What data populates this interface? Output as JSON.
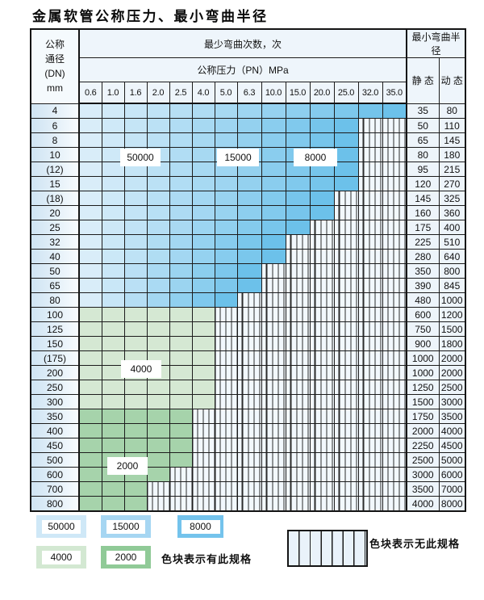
{
  "title": "金属软管公称压力、最小弯曲半径",
  "table": {
    "corner": [
      "公称",
      "通径",
      "(DN)",
      "mm"
    ],
    "bend_header": "最少弯曲次数，次",
    "pressure_header": "公称压力（PN）MPa",
    "radius_header": "最小弯曲半径",
    "static_label": "静 态",
    "dynamic_label": "动 态",
    "pressures": [
      "0.6",
      "1.0",
      "1.6",
      "2.0",
      "2.5",
      "4.0",
      "5.0",
      "6.3",
      "10.0",
      "15.0",
      "20.0",
      "25.0",
      "32.0",
      "35.0"
    ],
    "rows": [
      {
        "dn": "4",
        "colored": 14,
        "zone": "blue",
        "static": "35",
        "dynamic": "80"
      },
      {
        "dn": "6",
        "colored": 12,
        "zone": "blue",
        "static": "50",
        "dynamic": "110"
      },
      {
        "dn": "8",
        "colored": 12,
        "zone": "blue",
        "static": "65",
        "dynamic": "145"
      },
      {
        "dn": "10",
        "colored": 12,
        "zone": "blue",
        "static": "80",
        "dynamic": "180"
      },
      {
        "dn": "(12)",
        "colored": 12,
        "zone": "blue",
        "static": "95",
        "dynamic": "215"
      },
      {
        "dn": "15",
        "colored": 12,
        "zone": "blue",
        "static": "120",
        "dynamic": "270"
      },
      {
        "dn": "(18)",
        "colored": 11,
        "zone": "blue",
        "static": "145",
        "dynamic": "325"
      },
      {
        "dn": "20",
        "colored": 11,
        "zone": "blue",
        "static": "160",
        "dynamic": "360"
      },
      {
        "dn": "25",
        "colored": 10,
        "zone": "blue",
        "static": "175",
        "dynamic": "400"
      },
      {
        "dn": "32",
        "colored": 9,
        "zone": "blue",
        "static": "225",
        "dynamic": "510"
      },
      {
        "dn": "40",
        "colored": 9,
        "zone": "blue",
        "static": "280",
        "dynamic": "640"
      },
      {
        "dn": "50",
        "colored": 8,
        "zone": "blue",
        "static": "350",
        "dynamic": "800"
      },
      {
        "dn": "65",
        "colored": 8,
        "zone": "blue",
        "static": "390",
        "dynamic": "845"
      },
      {
        "dn": "80",
        "colored": 7,
        "zone": "blue",
        "static": "480",
        "dynamic": "1000"
      },
      {
        "dn": "100",
        "colored": 6,
        "zone": "green_light",
        "static": "600",
        "dynamic": "1200"
      },
      {
        "dn": "125",
        "colored": 6,
        "zone": "green_light",
        "static": "750",
        "dynamic": "1500"
      },
      {
        "dn": "150",
        "colored": 6,
        "zone": "green_light",
        "static": "900",
        "dynamic": "1800"
      },
      {
        "dn": "(175)",
        "colored": 6,
        "zone": "green_light",
        "static": "1000",
        "dynamic": "2000"
      },
      {
        "dn": "200",
        "colored": 6,
        "zone": "green_light",
        "static": "1000",
        "dynamic": "2000"
      },
      {
        "dn": "250",
        "colored": 6,
        "zone": "green_light",
        "static": "1250",
        "dynamic": "2500"
      },
      {
        "dn": "300",
        "colored": 6,
        "zone": "green_light",
        "static": "1500",
        "dynamic": "3000"
      },
      {
        "dn": "350",
        "colored": 5,
        "zone": "green_dark",
        "static": "1750",
        "dynamic": "3500"
      },
      {
        "dn": "400",
        "colored": 5,
        "zone": "green_dark",
        "static": "2000",
        "dynamic": "4000"
      },
      {
        "dn": "450",
        "colored": 5,
        "zone": "green_dark",
        "static": "2250",
        "dynamic": "4500"
      },
      {
        "dn": "500",
        "colored": 5,
        "zone": "green_dark",
        "static": "2500",
        "dynamic": "5000"
      },
      {
        "dn": "600",
        "colored": 4,
        "zone": "green_dark",
        "static": "3000",
        "dynamic": "6000"
      },
      {
        "dn": "700",
        "colored": 3,
        "zone": "green_dark",
        "static": "3500",
        "dynamic": "7000"
      },
      {
        "dn": "800",
        "colored": 3,
        "zone": "green_dark",
        "static": "4000",
        "dynamic": "8000"
      }
    ]
  },
  "zone_labels": {
    "z50000": "50000",
    "z15000": "15000",
    "z8000": "8000",
    "z4000": "4000",
    "z2000": "2000"
  },
  "legend": {
    "chips": [
      {
        "label": "50000",
        "color": "#cfe8f7"
      },
      {
        "label": "15000",
        "color": "#a6d6f2"
      },
      {
        "label": "8000",
        "color": "#74c3ec"
      },
      {
        "label": "4000",
        "color": "#d3e8d2"
      },
      {
        "label": "2000",
        "color": "#90ca97"
      }
    ],
    "has_spec_text": "色块表示有此规格",
    "no_spec_text": "色块表示无此规格"
  },
  "colors": {
    "blue_start": "#d9edf9",
    "blue_end": "#6cc1ea",
    "green_light": "#d5e8d3",
    "green_dark": "#a6d3ab",
    "hatch_bg": "#f2f8fd"
  }
}
